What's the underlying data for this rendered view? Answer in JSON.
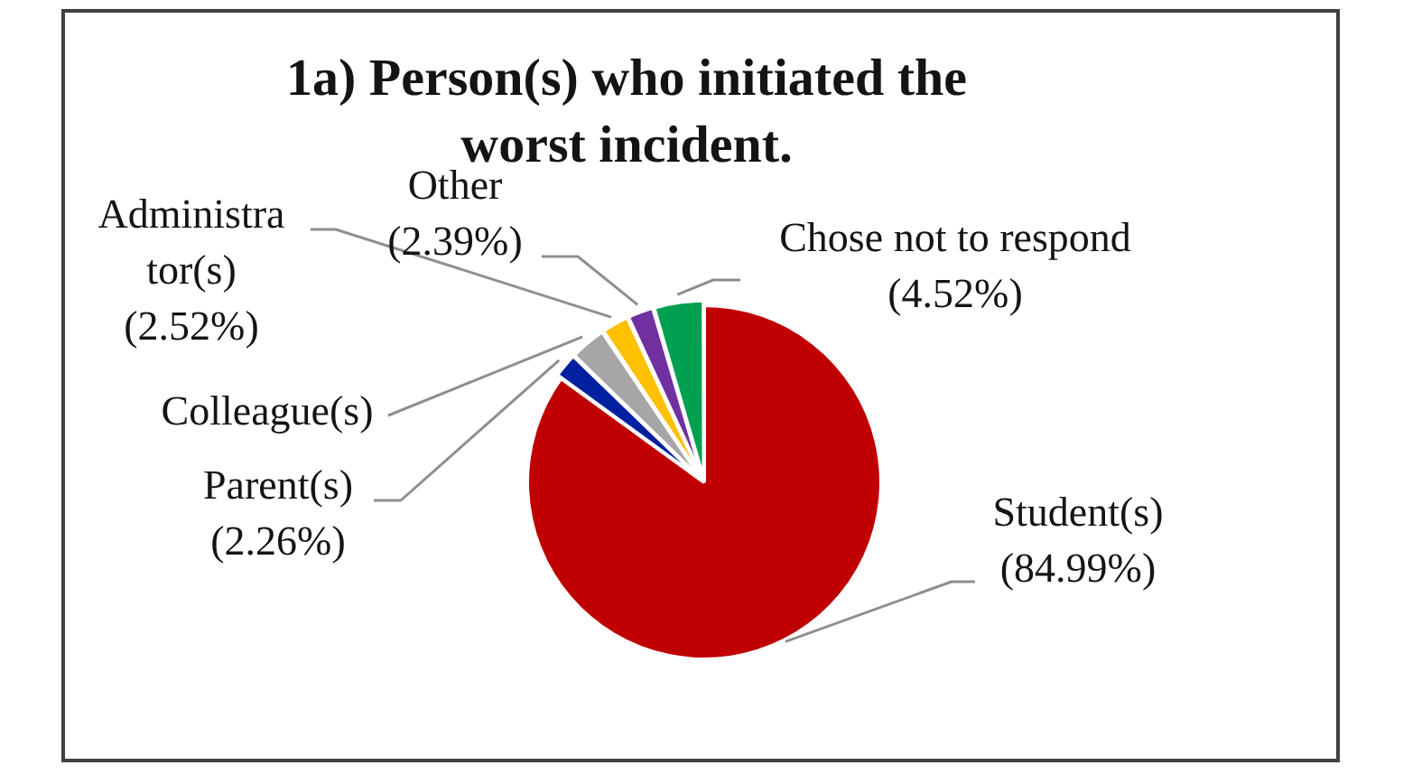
{
  "chart_data": {
    "type": "pie",
    "title": "1a) Person(s) who initiated the worst incident.",
    "categories": [
      "Student(s)",
      "Parent(s)",
      "Colleague(s)",
      "Administrator(s)",
      "Other",
      "Chose not to respond"
    ],
    "values": [
      84.99,
      2.26,
      3.32,
      2.52,
      2.39,
      4.52
    ],
    "colors": [
      "#c00000",
      "#0020a0",
      "#a6a6a6",
      "#ffc000",
      "#7030a0",
      "#00a050"
    ],
    "value_labels": [
      "(84.99%)",
      "(2.26%)",
      null,
      "(2.52%)",
      "(2.39%)",
      "(4.52%)"
    ],
    "legend": false
  }
}
